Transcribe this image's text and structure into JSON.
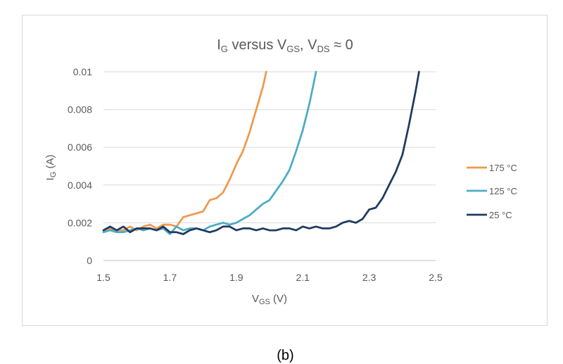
{
  "caption": "(b)",
  "chart_data": {
    "type": "line",
    "title": {
      "base": "I",
      "sub1": "G",
      "mid": " versus V",
      "sub2": "GS",
      "mid2": ", V",
      "sub3": "DS",
      "tail": " ≈ 0"
    },
    "xlabel": {
      "base": "V",
      "sub": "GS",
      "tail": " (V)"
    },
    "ylabel": {
      "base": "I",
      "sub": "G",
      "tail": " (A)"
    },
    "xlim": [
      1.5,
      2.5
    ],
    "ylim": [
      0,
      0.01
    ],
    "x_ticks": [
      "1.5",
      "1.7",
      "1.9",
      "2.1",
      "2.3",
      "2.5"
    ],
    "x_tick_values": [
      1.5,
      1.7,
      1.9,
      2.1,
      2.3,
      2.5
    ],
    "y_ticks": [
      "0",
      "0.002",
      "0.004",
      "0.006",
      "0.008",
      "0.01"
    ],
    "y_tick_values": [
      0,
      0.002,
      0.004,
      0.006,
      0.008,
      0.01
    ],
    "grid": "horizontal",
    "legend_position": "right",
    "series": [
      {
        "name": "175 °C",
        "color": "#ED9A4E",
        "x": [
          1.5,
          1.52,
          1.54,
          1.56,
          1.58,
          1.6,
          1.62,
          1.64,
          1.66,
          1.68,
          1.7,
          1.72,
          1.74,
          1.76,
          1.78,
          1.8,
          1.82,
          1.84,
          1.86,
          1.88,
          1.9,
          1.92,
          1.94,
          1.96,
          1.98,
          1.99
        ],
        "y": [
          0.0016,
          0.0017,
          0.0016,
          0.0016,
          0.0018,
          0.0016,
          0.0018,
          0.0019,
          0.0017,
          0.0019,
          0.0019,
          0.0018,
          0.0023,
          0.0024,
          0.0025,
          0.0026,
          0.0032,
          0.0033,
          0.0036,
          0.0043,
          0.0051,
          0.0058,
          0.0068,
          0.008,
          0.0092,
          0.01
        ]
      },
      {
        "name": "125 °C",
        "color": "#4BACC6",
        "x": [
          1.5,
          1.52,
          1.54,
          1.56,
          1.58,
          1.6,
          1.62,
          1.64,
          1.66,
          1.68,
          1.7,
          1.72,
          1.74,
          1.76,
          1.78,
          1.8,
          1.82,
          1.84,
          1.86,
          1.88,
          1.9,
          1.92,
          1.94,
          1.96,
          1.98,
          2.0,
          2.02,
          2.04,
          2.06,
          2.08,
          2.1,
          2.12,
          2.14
        ],
        "y": [
          0.0015,
          0.0016,
          0.0015,
          0.0015,
          0.0016,
          0.0017,
          0.0016,
          0.0017,
          0.0016,
          0.0017,
          0.0014,
          0.0018,
          0.0016,
          0.0017,
          0.0017,
          0.0016,
          0.0018,
          0.0019,
          0.002,
          0.0019,
          0.002,
          0.0022,
          0.0024,
          0.0027,
          0.003,
          0.0032,
          0.0037,
          0.0042,
          0.0048,
          0.0058,
          0.0069,
          0.0083,
          0.01
        ]
      },
      {
        "name": "25 °C",
        "color": "#1F3A60",
        "x": [
          1.5,
          1.52,
          1.54,
          1.56,
          1.58,
          1.6,
          1.62,
          1.64,
          1.66,
          1.68,
          1.7,
          1.72,
          1.74,
          1.76,
          1.78,
          1.8,
          1.82,
          1.84,
          1.86,
          1.88,
          1.9,
          1.92,
          1.94,
          1.96,
          1.98,
          2.0,
          2.02,
          2.04,
          2.06,
          2.08,
          2.1,
          2.12,
          2.14,
          2.16,
          2.18,
          2.2,
          2.22,
          2.24,
          2.26,
          2.28,
          2.3,
          2.32,
          2.34,
          2.36,
          2.38,
          2.4,
          2.42,
          2.44,
          2.45
        ],
        "y": [
          0.0016,
          0.0018,
          0.0016,
          0.0018,
          0.0015,
          0.0017,
          0.0017,
          0.0017,
          0.0016,
          0.0018,
          0.0015,
          0.0015,
          0.0014,
          0.0016,
          0.0017,
          0.0016,
          0.0015,
          0.0016,
          0.0018,
          0.0018,
          0.0016,
          0.0017,
          0.0017,
          0.0016,
          0.0017,
          0.0016,
          0.0016,
          0.0017,
          0.0017,
          0.0016,
          0.0018,
          0.0017,
          0.0018,
          0.0017,
          0.0017,
          0.0018,
          0.002,
          0.0021,
          0.002,
          0.0022,
          0.0027,
          0.0028,
          0.0033,
          0.004,
          0.0047,
          0.0056,
          0.0072,
          0.009,
          0.01
        ]
      }
    ]
  }
}
